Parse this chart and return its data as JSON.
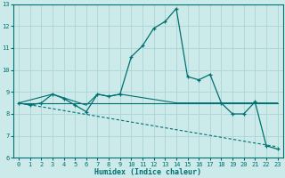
{
  "xlabel": "Humidex (Indice chaleur)",
  "background_color": "#cceaea",
  "line_color": "#007070",
  "grid_color": "#aad4d4",
  "xlim": [
    -0.5,
    23.5
  ],
  "ylim": [
    6,
    13
  ],
  "yticks": [
    6,
    7,
    8,
    9,
    10,
    11,
    12,
    13
  ],
  "xticks": [
    0,
    1,
    2,
    3,
    4,
    5,
    6,
    7,
    8,
    9,
    10,
    11,
    12,
    13,
    14,
    15,
    16,
    17,
    18,
    19,
    20,
    21,
    22,
    23
  ],
  "main_line_x": [
    0,
    1,
    2,
    3,
    4,
    5,
    6,
    7,
    8,
    9,
    10,
    11,
    12,
    13,
    14,
    15,
    16,
    17,
    18,
    19,
    20,
    21,
    22,
    23
  ],
  "main_line_y": [
    8.5,
    8.4,
    8.5,
    8.9,
    8.7,
    8.4,
    8.1,
    8.9,
    8.8,
    8.9,
    10.6,
    11.1,
    11.9,
    12.2,
    12.8,
    9.7,
    9.55,
    9.8,
    8.5,
    8.0,
    8.0,
    8.55,
    6.55,
    6.4
  ],
  "line2_x": [
    0,
    23
  ],
  "line2_y": [
    8.5,
    8.5
  ],
  "line3_x": [
    0,
    23
  ],
  "line3_y": [
    8.5,
    6.5
  ],
  "line4_x": [
    0,
    3,
    6,
    7,
    8,
    9,
    14,
    23
  ],
  "line4_y": [
    8.5,
    8.9,
    8.4,
    8.9,
    8.8,
    8.9,
    8.5,
    8.5
  ]
}
